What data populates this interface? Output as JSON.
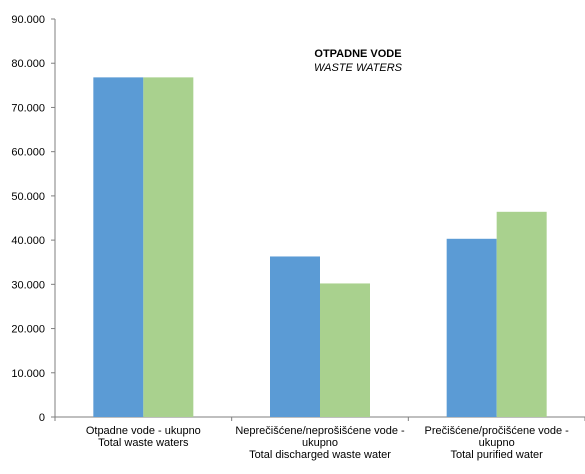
{
  "chart_data": {
    "type": "bar",
    "title": "OTPADNE VODE",
    "subtitle": "WASTE WATERS",
    "categories": [
      [
        "Otpadne vode - ukupno",
        "Total waste waters"
      ],
      [
        "Neprečišćene/neprošišćene vode -",
        "ukupno",
        "Total discharged waste water"
      ],
      [
        "Prečišćene/pročišćene vode -",
        "ukupno",
        "Total purified water"
      ]
    ],
    "series": [
      {
        "color": "#5b9bd5",
        "values": [
          76800,
          36300,
          40300
        ]
      },
      {
        "color": "#a9d18e",
        "values": [
          76800,
          30200,
          46400
        ]
      }
    ],
    "ylim": [
      0,
      90000
    ],
    "yticks": [
      "0",
      "10.000",
      "20.000",
      "30.000",
      "40.000",
      "50.000",
      "60.000",
      "70.000",
      "80.000",
      "90.000"
    ],
    "grid": false,
    "legend": "none"
  }
}
